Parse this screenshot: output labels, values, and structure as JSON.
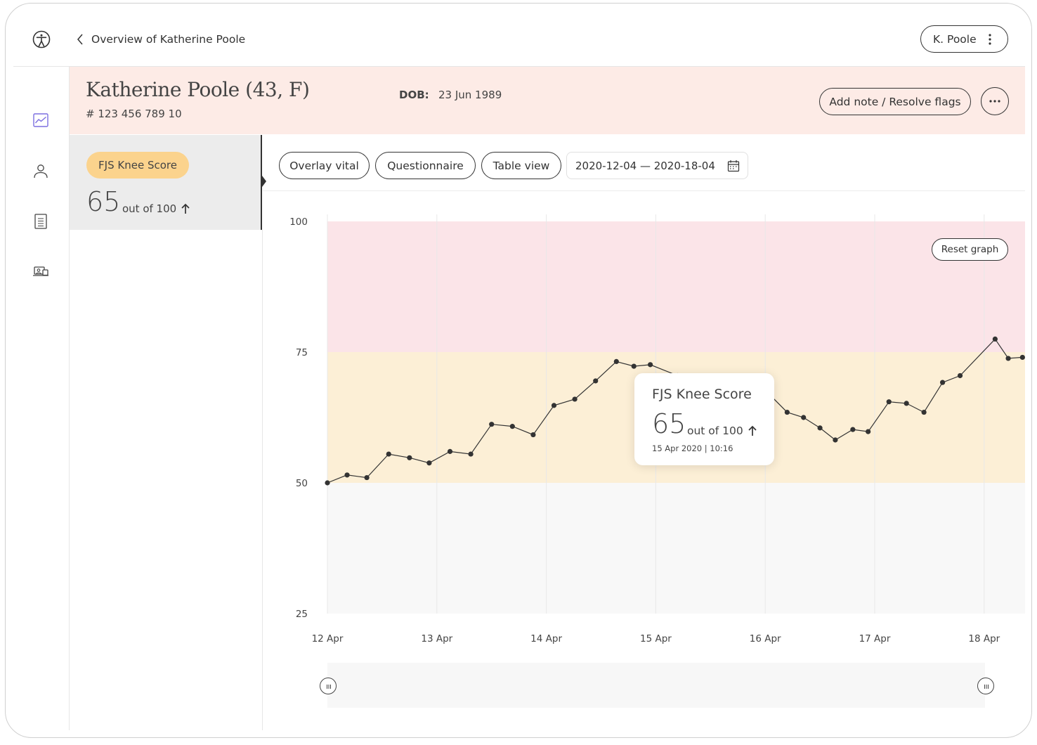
{
  "topbar": {
    "back_label": "Overview of Katherine Poole",
    "user_label": "K. Poole"
  },
  "sidebar": {
    "items": [
      {
        "name": "graph-icon",
        "active": true
      },
      {
        "name": "person-icon",
        "active": false
      },
      {
        "name": "document-icon",
        "active": false
      },
      {
        "name": "video-call-icon",
        "active": false
      }
    ]
  },
  "patient": {
    "name": "Katherine Poole (43,  F)",
    "id": "# 123 456 789 10",
    "dob_label": "DOB:",
    "dob_value": "23 Jun 1989",
    "add_note_label": "Add note / Resolve flags"
  },
  "score_card": {
    "label": "FJS Knee Score",
    "value": "65",
    "unit": "out of 100"
  },
  "toolbar": {
    "overlay": "Overlay vital",
    "questionnaire": "Questionnaire",
    "table_view": "Table view",
    "date_range": "2020-12-04 — 2020-18-04"
  },
  "tooltip": {
    "title": "FJS Knee Score",
    "value": "65",
    "unit": "out of 100",
    "timestamp": "15 Apr 2020 | 10:16"
  },
  "reset_label": "Reset graph",
  "colors": {
    "header_bg": "#fdebe6",
    "pill_bg": "#fbd38d",
    "band_high": "#fbe4e8",
    "band_mid": "#fcefd6",
    "band_low": "#f8f8f8"
  },
  "chart_data": {
    "type": "line",
    "ylim": [
      25,
      100
    ],
    "yticks": [
      100,
      75,
      50,
      25
    ],
    "xticks": [
      "12 Apr",
      "13 Apr",
      "14 Apr",
      "15 Apr",
      "16 Apr",
      "17 Apr",
      "18 Apr"
    ],
    "bands": [
      {
        "from": 75,
        "to": 100,
        "color": "#fbe4e8"
      },
      {
        "from": 50,
        "to": 75,
        "color": "#fcefd6"
      },
      {
        "from": 25,
        "to": 50,
        "color": "#f8f8f8"
      }
    ],
    "series": [
      {
        "points": [
          [
            0.0,
            50
          ],
          [
            0.18,
            51.5
          ],
          [
            0.36,
            51
          ],
          [
            0.56,
            55.5
          ],
          [
            0.75,
            54.8
          ],
          [
            0.93,
            53.8
          ],
          [
            1.12,
            56
          ],
          [
            1.31,
            55.5
          ],
          [
            1.5,
            61.2
          ],
          [
            1.69,
            60.8
          ],
          [
            1.88,
            59.2
          ],
          [
            2.07,
            64.8
          ],
          [
            2.26,
            66
          ],
          [
            2.45,
            69.5
          ],
          [
            2.64,
            73.2
          ],
          [
            2.8,
            72.3
          ],
          [
            2.95,
            72.6
          ],
          [
            3.2,
            70.5
          ],
          [
            3.4,
            68.5
          ],
          [
            3.6,
            67.3
          ],
          [
            3.82,
            66.8
          ],
          [
            4.02,
            67.3
          ],
          [
            4.2,
            63.5
          ],
          [
            4.35,
            62.5
          ],
          [
            4.5,
            60.5
          ],
          [
            4.64,
            58.2
          ],
          [
            4.8,
            60.2
          ],
          [
            4.94,
            59.8
          ],
          [
            5.13,
            65.5
          ],
          [
            5.29,
            65.2
          ],
          [
            5.45,
            63.5
          ],
          [
            5.62,
            69.2
          ],
          [
            5.78,
            70.5
          ],
          [
            6.1,
            77.5
          ],
          [
            6.22,
            73.8
          ],
          [
            6.35,
            74
          ]
        ]
      }
    ]
  }
}
